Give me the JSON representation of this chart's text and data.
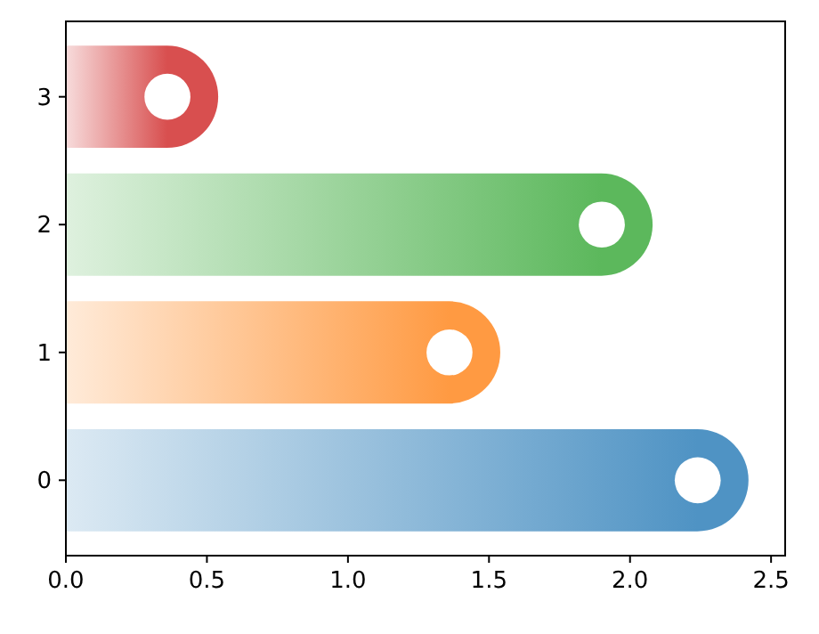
{
  "chart_data": {
    "type": "bar",
    "orientation": "horizontal",
    "categories": [
      "3",
      "2",
      "1",
      "0"
    ],
    "series": [
      {
        "type": "bar",
        "values": [
          0.54,
          2.08,
          1.54,
          2.42
        ],
        "colors": [
          "#d84f4f",
          "#5cb85c",
          "#ff9a42",
          "#4f93c4"
        ]
      },
      {
        "type": "scatter",
        "values": [
          0.36,
          1.9,
          1.36,
          2.24
        ],
        "color": "#ffffff",
        "marker": "circle"
      }
    ],
    "xlim": [
      0,
      2.55
    ],
    "xticks": [
      {
        "value": 0,
        "label": "0.0"
      },
      {
        "value": 0.5,
        "label": "0.5"
      },
      {
        "value": 1,
        "label": "1.0"
      },
      {
        "value": 1.5,
        "label": "1.5"
      },
      {
        "value": 2,
        "label": "2.0"
      },
      {
        "value": 2.5,
        "label": "2.5"
      }
    ],
    "grid": false
  }
}
